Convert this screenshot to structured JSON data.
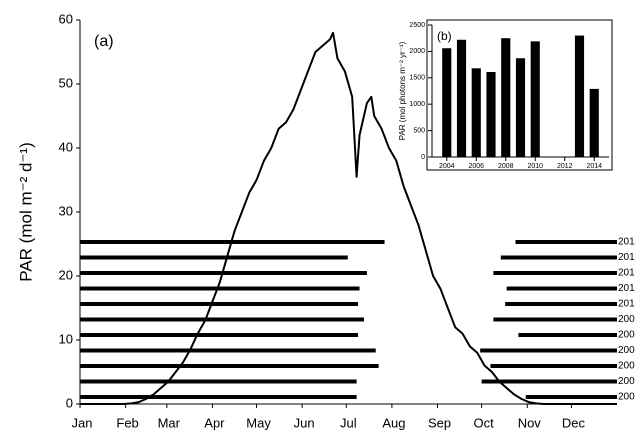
{
  "chart_data": [
    {
      "type": "line",
      "panel_label": "(a)",
      "y_label": "PAR (mol m⁻² d⁻¹)",
      "xlim": [
        0,
        365
      ],
      "ylim": [
        0,
        60
      ],
      "xticks": [
        {
          "value": 0,
          "label": "Jan"
        },
        {
          "value": 31,
          "label": "Feb"
        },
        {
          "value": 59,
          "label": "Mar"
        },
        {
          "value": 90,
          "label": "Apr"
        },
        {
          "value": 120,
          "label": "May"
        },
        {
          "value": 151,
          "label": "Jun"
        },
        {
          "value": 181,
          "label": "Jul"
        },
        {
          "value": 212,
          "label": "Aug"
        },
        {
          "value": 243,
          "label": "Sep"
        },
        {
          "value": 273,
          "label": "Oct"
        },
        {
          "value": 304,
          "label": "Nov"
        },
        {
          "value": 334,
          "label": "Dec"
        }
      ],
      "yticks": [
        0,
        10,
        20,
        30,
        40,
        50,
        60
      ],
      "x": [
        0,
        5,
        10,
        15,
        20,
        25,
        30,
        35,
        40,
        45,
        50,
        55,
        60,
        65,
        70,
        75,
        80,
        85,
        90,
        95,
        100,
        105,
        110,
        115,
        120,
        125,
        130,
        135,
        140,
        145,
        150,
        155,
        160,
        165,
        170,
        172,
        175,
        180,
        185,
        188,
        190,
        195,
        198,
        200,
        205,
        210,
        215,
        220,
        225,
        230,
        235,
        240,
        245,
        250,
        255,
        260,
        265,
        270,
        275,
        280,
        285,
        290,
        295,
        300,
        305,
        310,
        315,
        320,
        330,
        340,
        350,
        365
      ],
      "series": [
        {
          "color": "#000000",
          "values": [
            0,
            0,
            0,
            0,
            0,
            0,
            0,
            0.1,
            0.3,
            0.8,
            1.5,
            2.5,
            3.5,
            5,
            6.5,
            8.5,
            11,
            13,
            16,
            19,
            23,
            27,
            30,
            33,
            35,
            38,
            40,
            43,
            44,
            46,
            49,
            52,
            55,
            56,
            57,
            58,
            54,
            52,
            48,
            35.5,
            42,
            47,
            48,
            45,
            43,
            40,
            38,
            34,
            31,
            28,
            24,
            20,
            18,
            15,
            12,
            11,
            9,
            8,
            6,
            5,
            3.5,
            2.5,
            1.5,
            0.8,
            0.3,
            0.1,
            0,
            0,
            0,
            0,
            0,
            0
          ]
        }
      ],
      "periods": {
        "color": "#000000",
        "labels": [
          "201",
          "201",
          "201",
          "201",
          "201",
          "200",
          "200",
          "200",
          "200",
          "200",
          "200"
        ],
        "first_end": [
          207,
          182,
          195,
          190,
          189,
          193,
          189,
          201,
          203,
          188,
          188
        ],
        "second_start": [
          296,
          286,
          281,
          290,
          289,
          281,
          298,
          272,
          279,
          273,
          303
        ]
      }
    },
    {
      "type": "bar",
      "panel_label": "(b)",
      "y_label": "PAR (mol photons m⁻² yr⁻¹)",
      "xlim": [
        2003,
        2015
      ],
      "ylim": [
        0,
        2500
      ],
      "xticks": [
        2004,
        2006,
        2008,
        2010,
        2012,
        2014
      ],
      "yticks": [
        0,
        500,
        1000,
        1500,
        2000,
        2500
      ],
      "color": "#000000",
      "x": [
        2004,
        2005,
        2006,
        2007,
        2008,
        2009,
        2010,
        2013,
        2014
      ],
      "values": [
        2060,
        2220,
        1680,
        1610,
        2250,
        1870,
        2190,
        2300,
        1290
      ]
    }
  ]
}
